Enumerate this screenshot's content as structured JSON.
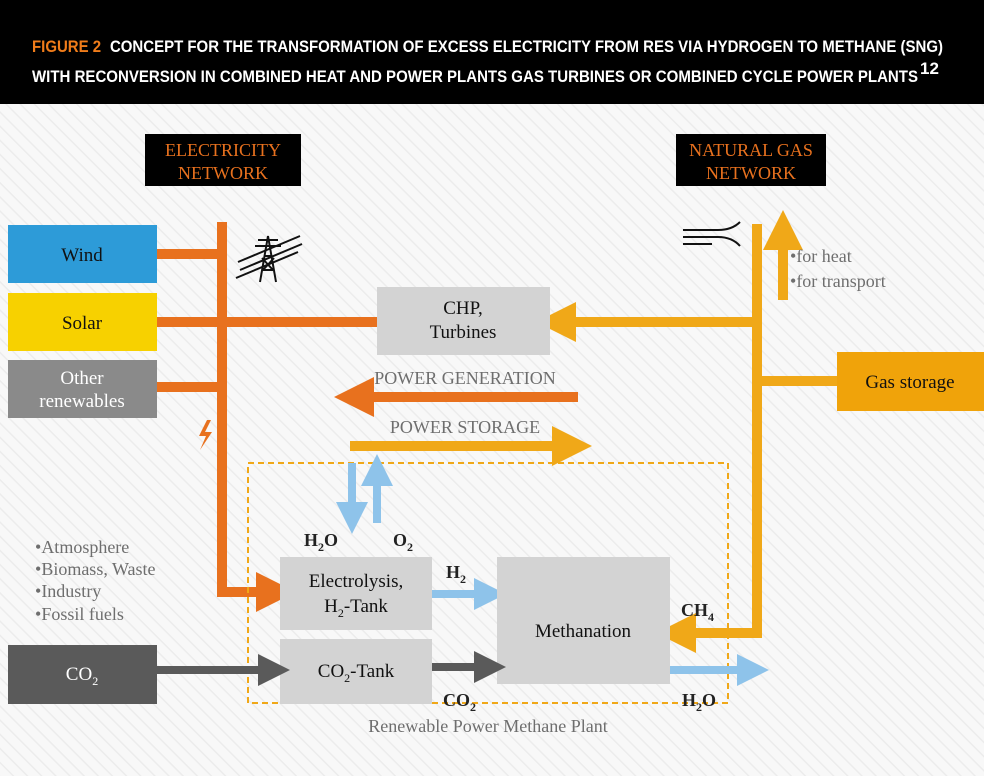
{
  "header": {
    "figure_label": "FIGURE 2",
    "title_lines": [
      "CONCEPT FOR THE TRANSFORMATION OF EXCESS ELECTRICITY FROM RES VIA HYDROGEN TO METHANE (SNG)",
      "WITH RECONVERSION IN COMBINED HEAT AND POWER PLANTS GAS TURBINES OR COMBINED CYCLE POWER PLANTS"
    ],
    "footnote": "12"
  },
  "networks": {
    "electricity": [
      "ELECTRICITY",
      "NETWORK"
    ],
    "natural_gas": [
      "NATURAL GAS",
      "NETWORK"
    ]
  },
  "sources": {
    "wind": "Wind",
    "solar": "Solar",
    "other": [
      "Other",
      "renewables"
    ]
  },
  "gas_uses": [
    "for heat",
    "for transport"
  ],
  "chp": [
    "CHP,",
    "Turbines"
  ],
  "gas_storage": "Gas storage",
  "flows": {
    "power_generation": "POWER GENERATION",
    "power_storage": "POWER STORAGE"
  },
  "co2_origins": [
    "Atmosphere",
    "Biomass, Waste",
    "Industry",
    "Fossil fuels"
  ],
  "co2_source": [
    "CO",
    "2"
  ],
  "electrolysis": {
    "line1": "Electrolysis,",
    "line2": [
      "H",
      "2",
      "-Tank"
    ]
  },
  "co2_tank": [
    "CO",
    "2",
    "-Tank"
  ],
  "methanation": "Methanation",
  "labels": {
    "h2o_in": [
      "H",
      "2",
      "O"
    ],
    "o2": [
      "O",
      "2"
    ],
    "h2": [
      "H",
      "2"
    ],
    "ch4": [
      "CH",
      "4"
    ],
    "co2": [
      "CO",
      "2"
    ],
    "h2o_out": [
      "H",
      "2",
      "O"
    ]
  },
  "plant_label": "Renewable Power Methane Plant"
}
